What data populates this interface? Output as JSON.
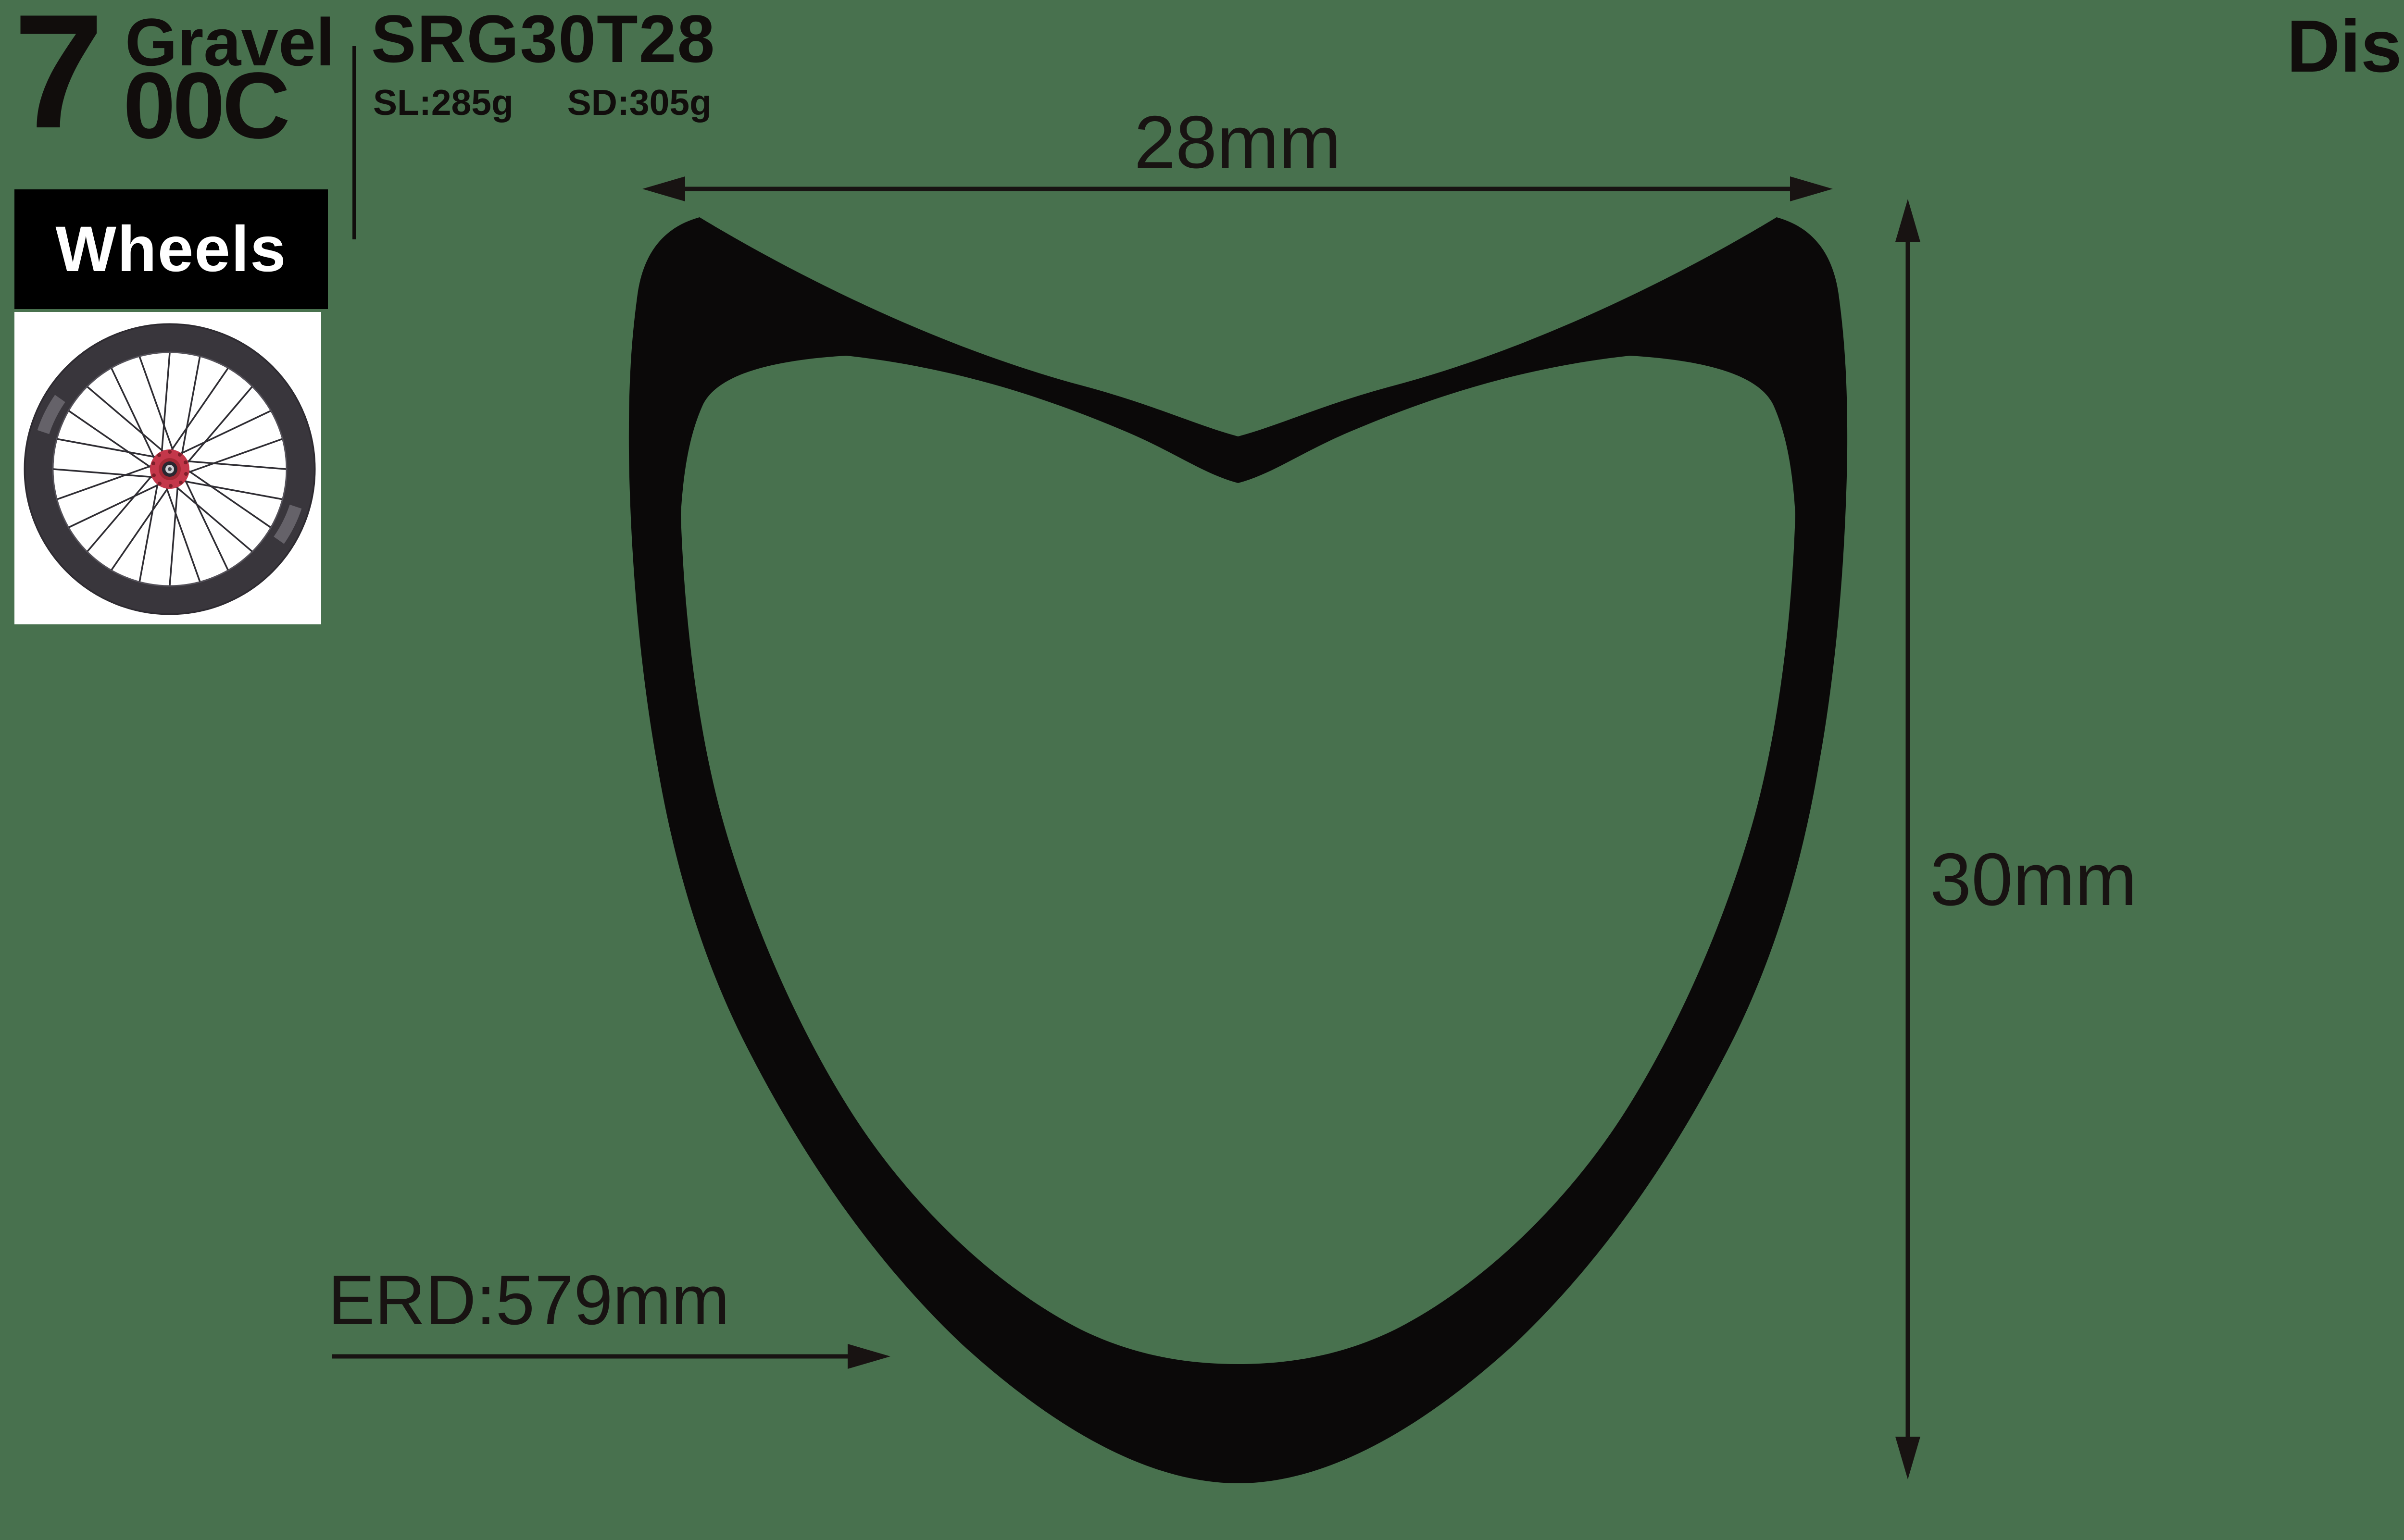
{
  "header": {
    "size_big": "7",
    "size_label_top": "Gravel",
    "size_label_bottom": "00C",
    "model": "SRG30T28",
    "weight_sl": "SL:285g",
    "weight_sd": "SD:305g",
    "brake_type": "Disc"
  },
  "category": {
    "label": "Wheels"
  },
  "wheel_photo": {
    "icon": "bicycle-wheel-photo",
    "spoke_count": 24,
    "hub_color": "#c4374a",
    "rim_color": "#39363c",
    "background": "#ffffff"
  },
  "rim_profile": {
    "icon": "rim-cross-section-silhouette",
    "fill_color": "#0b0909",
    "width_label": "28mm",
    "depth_label": "30mm",
    "erd_label": "ERD:579mm"
  },
  "colors": {
    "background_green": "#48714E",
    "ink_black": "#110d0c",
    "label_box_black": "#000000",
    "label_text_white": "#ffffff"
  }
}
